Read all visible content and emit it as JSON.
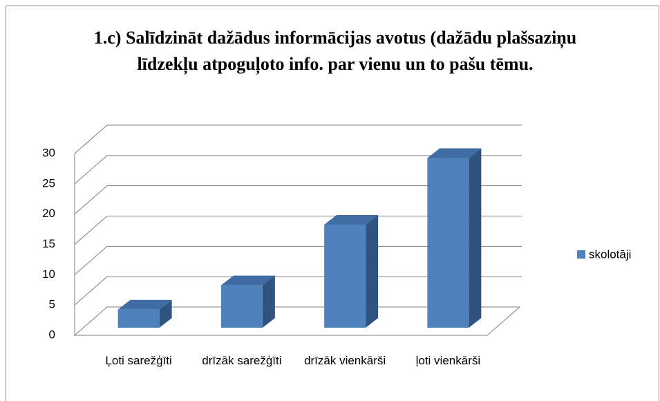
{
  "chart_data": {
    "type": "bar3d",
    "title": "1.c)  Salīdzināt dažādus informācijas avotus (dažādu plašsaziņu līdzekļu atpoguļoto info. par vienu un to pašu tēmu.",
    "categories": [
      "Ļoti sarežģīti",
      "drīzāk sarežģīti",
      "drīzāk vienkārši",
      "ļoti vienkārši"
    ],
    "series": [
      {
        "name": "skolotāji",
        "color": "#4f81bd",
        "values": [
          3,
          7,
          17,
          28
        ]
      }
    ],
    "ylim": [
      0,
      30
    ],
    "yticks": [
      0,
      5,
      10,
      15,
      20,
      25,
      30
    ],
    "grid": true,
    "legend": "right"
  }
}
